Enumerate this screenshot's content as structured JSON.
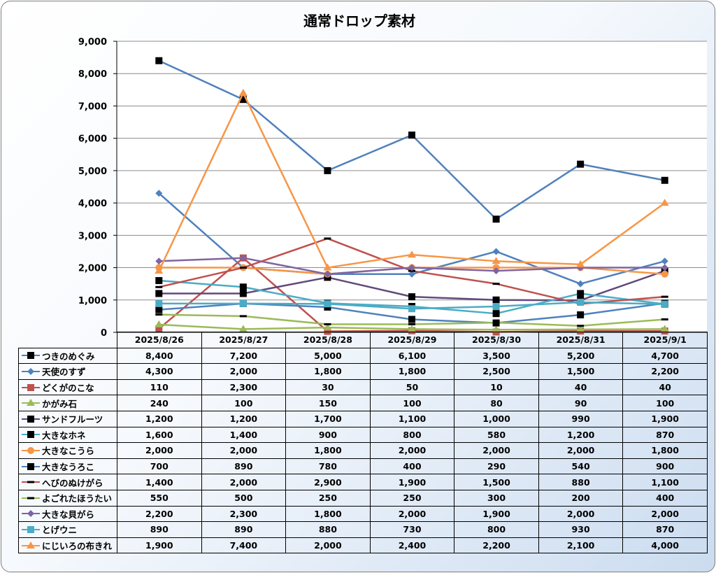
{
  "chart_data": {
    "type": "line",
    "title": "通常ドロップ素材",
    "categories": [
      "2025/8/26",
      "2025/8/27",
      "2025/8/28",
      "2025/8/29",
      "2025/8/30",
      "2025/8/31",
      "2025/9/1"
    ],
    "ylim": [
      0,
      9000
    ],
    "y_ticks": [
      "0",
      "1,000",
      "2,000",
      "3,000",
      "4,000",
      "5,000",
      "6,000",
      "7,000",
      "8,000",
      "9,000"
    ],
    "grid": true,
    "legend_placement": "data-table",
    "series": [
      {
        "name": "つきのめぐみ",
        "color": "#4f81bd",
        "marker": "square",
        "marker_color": "#000000",
        "values": [
          8400,
          7200,
          5000,
          6100,
          3500,
          5200,
          4700
        ],
        "labels": [
          "8,400",
          "7,200",
          "5,000",
          "6,100",
          "3,500",
          "5,200",
          "4,700"
        ]
      },
      {
        "name": "天使のすず",
        "color": "#4f81bd",
        "marker": "diamond",
        "marker_color": "#4f81bd",
        "values": [
          4300,
          2000,
          1800,
          1800,
          2500,
          1500,
          2200
        ],
        "labels": [
          "4,300",
          "2,000",
          "1,800",
          "1,800",
          "2,500",
          "1,500",
          "2,200"
        ]
      },
      {
        "name": "どくがのこな",
        "color": "#c0504d",
        "marker": "square",
        "marker_color": "#c0504d",
        "values": [
          110,
          2300,
          30,
          50,
          10,
          40,
          40
        ],
        "labels": [
          "110",
          "2,300",
          "30",
          "50",
          "10",
          "40",
          "40"
        ]
      },
      {
        "name": "かがみ石",
        "color": "#9bbb59",
        "marker": "triangle",
        "marker_color": "#9bbb59",
        "values": [
          240,
          100,
          150,
          100,
          80,
          90,
          100
        ],
        "labels": [
          "240",
          "100",
          "150",
          "100",
          "80",
          "90",
          "100"
        ]
      },
      {
        "name": "サンドフルーツ",
        "color": "#604a7b",
        "marker": "square",
        "marker_color": "#000000",
        "values": [
          1200,
          1200,
          1700,
          1100,
          1000,
          990,
          1900
        ],
        "labels": [
          "1,200",
          "1,200",
          "1,700",
          "1,100",
          "1,000",
          "990",
          "1,900"
        ]
      },
      {
        "name": "大きなホネ",
        "color": "#4bacc6",
        "marker": "square",
        "marker_color": "#000000",
        "values": [
          1600,
          1400,
          900,
          800,
          580,
          1200,
          870
        ],
        "labels": [
          "1,600",
          "1,400",
          "900",
          "800",
          "580",
          "1,200",
          "870"
        ]
      },
      {
        "name": "大きなこうら",
        "color": "#f79646",
        "marker": "circle",
        "marker_color": "#f79646",
        "values": [
          2000,
          2000,
          1800,
          2000,
          2000,
          2000,
          1800
        ],
        "labels": [
          "2,000",
          "2,000",
          "1,800",
          "2,000",
          "2,000",
          "2,000",
          "1,800"
        ]
      },
      {
        "name": "大きなうろこ",
        "color": "#4f81bd",
        "marker": "square",
        "marker_color": "#000000",
        "values": [
          700,
          890,
          780,
          400,
          290,
          540,
          900
        ],
        "labels": [
          "700",
          "890",
          "780",
          "400",
          "290",
          "540",
          "900"
        ]
      },
      {
        "name": "へびのぬけがら",
        "color": "#c0504d",
        "marker": "dash",
        "marker_color": "#000000",
        "values": [
          1400,
          2000,
          2900,
          1900,
          1500,
          880,
          1100
        ],
        "labels": [
          "1,400",
          "2,000",
          "2,900",
          "1,900",
          "1,500",
          "880",
          "1,100"
        ]
      },
      {
        "name": "よごれたほうたい",
        "color": "#9bbb59",
        "marker": "dash",
        "marker_color": "#000000",
        "values": [
          550,
          500,
          250,
          250,
          300,
          200,
          400
        ],
        "labels": [
          "550",
          "500",
          "250",
          "250",
          "300",
          "200",
          "400"
        ]
      },
      {
        "name": "大きな貝がら",
        "color": "#8064a2",
        "marker": "diamond",
        "marker_color": "#8064a2",
        "values": [
          2200,
          2300,
          1800,
          2000,
          1900,
          2000,
          2000
        ],
        "labels": [
          "2,200",
          "2,300",
          "1,800",
          "2,000",
          "1,900",
          "2,000",
          "2,000"
        ]
      },
      {
        "name": "とげウニ",
        "color": "#4bacc6",
        "marker": "square",
        "marker_color": "#4bacc6",
        "values": [
          890,
          890,
          880,
          730,
          800,
          930,
          870
        ],
        "labels": [
          "890",
          "890",
          "880",
          "730",
          "800",
          "930",
          "870"
        ]
      },
      {
        "name": "にじいろの布きれ",
        "color": "#f79646",
        "marker": "triangle",
        "marker_color": "#f79646",
        "values": [
          1900,
          7400,
          2000,
          2400,
          2200,
          2100,
          4000
        ],
        "labels": [
          "1,900",
          "7,400",
          "2,000",
          "2,400",
          "2,200",
          "2,100",
          "4,000"
        ]
      }
    ]
  }
}
